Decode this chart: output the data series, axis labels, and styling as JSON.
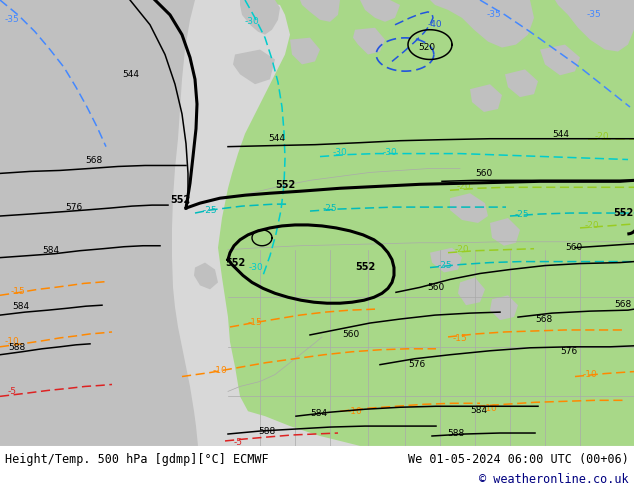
{
  "title_left": "Height/Temp. 500 hPa [gdmp][°C] ECMWF",
  "title_right": "We 01-05-2024 06:00 UTC (00+06)",
  "copyright": "© weatheronline.co.uk",
  "bg_gray": "#d8d8d8",
  "land_green": "#a8d888",
  "land_gray": "#c0c0c0",
  "figsize": [
    6.34,
    4.9
  ],
  "dpi": 100,
  "copyright_color": "#000080",
  "text_color": "#000000"
}
